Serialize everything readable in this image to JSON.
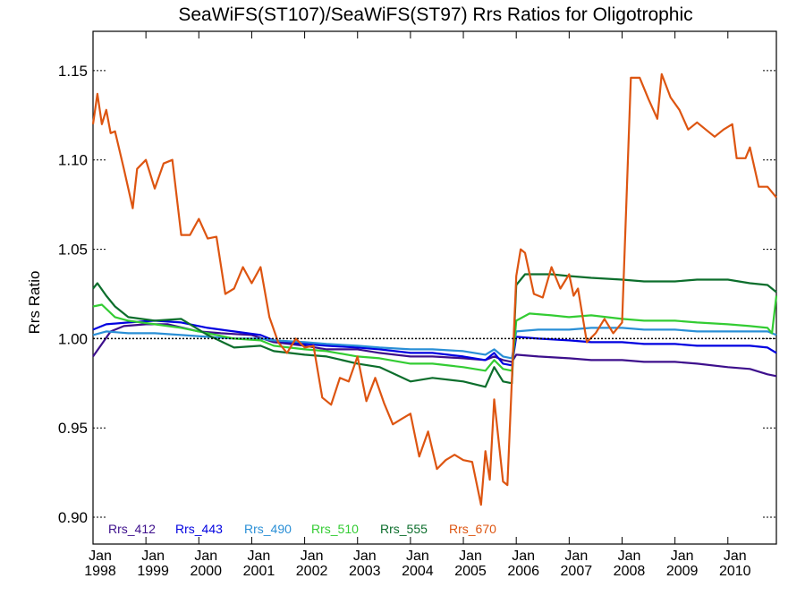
{
  "chart_data": {
    "type": "line",
    "title": "SeaWiFS(ST107)/SeaWiFS(ST97)  Rrs Ratios for Oligotrophic",
    "ylabel": "Rrs Ratio",
    "xlabel": "",
    "xlim": [
      "1998-01",
      "2010-12"
    ],
    "ylim": [
      0.885,
      1.172
    ],
    "x_ticks": [
      {
        "month": "Jan",
        "year": "1998",
        "date": "1998-01"
      },
      {
        "month": "Jan",
        "year": "1999",
        "date": "1999-01"
      },
      {
        "month": "Jan",
        "year": "2000",
        "date": "2000-01"
      },
      {
        "month": "Jan",
        "year": "2001",
        "date": "2001-01"
      },
      {
        "month": "Jan",
        "year": "2002",
        "date": "2002-01"
      },
      {
        "month": "Jan",
        "year": "2003",
        "date": "2003-01"
      },
      {
        "month": "Jan",
        "year": "2004",
        "date": "2004-01"
      },
      {
        "month": "Jan",
        "year": "2005",
        "date": "2005-01"
      },
      {
        "month": "Jan",
        "year": "2006",
        "date": "2006-01"
      },
      {
        "month": "Jan",
        "year": "2007",
        "date": "2007-01"
      },
      {
        "month": "Jan",
        "year": "2008",
        "date": "2008-01"
      },
      {
        "month": "Jan",
        "year": "2009",
        "date": "2009-01"
      },
      {
        "month": "Jan",
        "year": "2010",
        "date": "2010-01"
      }
    ],
    "y_ticks": [
      "0.90",
      "0.95",
      "1.00",
      "1.05",
      "1.10",
      "1.15"
    ],
    "reference_line": 1.0,
    "legend_position": "bottom-left",
    "series": [
      {
        "name": "Rrs_412",
        "color": "#3d0f8c",
        "points": [
          [
            "1998-01",
            0.99
          ],
          [
            "1998-03",
            0.997
          ],
          [
            "1998-05",
            1.004
          ],
          [
            "1998-08",
            1.007
          ],
          [
            "1999-01",
            1.008
          ],
          [
            "1999-06",
            1.008
          ],
          [
            "2000-01",
            1.004
          ],
          [
            "2000-06",
            1.003
          ],
          [
            "2001-01",
            1.002
          ],
          [
            "2001-06",
            0.998
          ],
          [
            "2002-01",
            0.996
          ],
          [
            "2002-06",
            0.994
          ],
          [
            "2003-01",
            0.994
          ],
          [
            "2003-06",
            0.992
          ],
          [
            "2004-01",
            0.99
          ],
          [
            "2004-06",
            0.99
          ],
          [
            "2005-01",
            0.989
          ],
          [
            "2005-06",
            0.988
          ],
          [
            "2005-08",
            0.99
          ],
          [
            "2005-10",
            0.988
          ],
          [
            "2005-12",
            0.987
          ],
          [
            "2006-01",
            0.991
          ],
          [
            "2006-06",
            0.99
          ],
          [
            "2007-01",
            0.989
          ],
          [
            "2007-06",
            0.988
          ],
          [
            "2008-01",
            0.988
          ],
          [
            "2008-06",
            0.987
          ],
          [
            "2009-01",
            0.987
          ],
          [
            "2009-06",
            0.986
          ],
          [
            "2010-01",
            0.984
          ],
          [
            "2010-06",
            0.983
          ],
          [
            "2010-10",
            0.98
          ],
          [
            "2010-12",
            0.979
          ]
        ]
      },
      {
        "name": "Rrs_443",
        "color": "#0000e0",
        "points": [
          [
            "1998-01",
            1.005
          ],
          [
            "1998-04",
            1.008
          ],
          [
            "1998-09",
            1.009
          ],
          [
            "1999-03",
            1.01
          ],
          [
            "1999-09",
            1.009
          ],
          [
            "2000-03",
            1.006
          ],
          [
            "2000-09",
            1.004
          ],
          [
            "2001-03",
            1.002
          ],
          [
            "2001-06",
            0.999
          ],
          [
            "2002-01",
            0.997
          ],
          [
            "2002-06",
            0.996
          ],
          [
            "2003-01",
            0.995
          ],
          [
            "2003-06",
            0.994
          ],
          [
            "2004-01",
            0.992
          ],
          [
            "2004-06",
            0.992
          ],
          [
            "2005-01",
            0.99
          ],
          [
            "2005-06",
            0.988
          ],
          [
            "2005-08",
            0.992
          ],
          [
            "2005-10",
            0.986
          ],
          [
            "2005-12",
            0.985
          ],
          [
            "2006-01",
            1.001
          ],
          [
            "2006-06",
            1.0
          ],
          [
            "2007-01",
            0.999
          ],
          [
            "2007-06",
            0.998
          ],
          [
            "2008-01",
            0.998
          ],
          [
            "2008-06",
            0.997
          ],
          [
            "2009-01",
            0.997
          ],
          [
            "2009-06",
            0.996
          ],
          [
            "2010-01",
            0.996
          ],
          [
            "2010-06",
            0.996
          ],
          [
            "2010-10",
            0.995
          ],
          [
            "2010-12",
            0.992
          ]
        ]
      },
      {
        "name": "Rrs_490",
        "color": "#2a8fd6",
        "points": [
          [
            "1998-01",
            1.002
          ],
          [
            "1998-04",
            1.004
          ],
          [
            "1998-09",
            1.003
          ],
          [
            "1999-03",
            1.003
          ],
          [
            "1999-09",
            1.002
          ],
          [
            "2000-03",
            1.001
          ],
          [
            "2000-09",
            1.0
          ],
          [
            "2001-03",
            1.0
          ],
          [
            "2001-06",
            0.999
          ],
          [
            "2002-01",
            0.998
          ],
          [
            "2002-06",
            0.997
          ],
          [
            "2003-01",
            0.996
          ],
          [
            "2003-06",
            0.995
          ],
          [
            "2004-01",
            0.994
          ],
          [
            "2004-06",
            0.994
          ],
          [
            "2005-01",
            0.993
          ],
          [
            "2005-06",
            0.991
          ],
          [
            "2005-08",
            0.994
          ],
          [
            "2005-10",
            0.99
          ],
          [
            "2005-12",
            0.989
          ],
          [
            "2006-01",
            1.004
          ],
          [
            "2006-06",
            1.005
          ],
          [
            "2007-01",
            1.005
          ],
          [
            "2007-06",
            1.006
          ],
          [
            "2008-01",
            1.006
          ],
          [
            "2008-06",
            1.005
          ],
          [
            "2009-01",
            1.005
          ],
          [
            "2009-06",
            1.004
          ],
          [
            "2010-01",
            1.004
          ],
          [
            "2010-06",
            1.004
          ],
          [
            "2010-10",
            1.004
          ],
          [
            "2010-12",
            1.002
          ]
        ]
      },
      {
        "name": "Rrs_510",
        "color": "#33cc33",
        "points": [
          [
            "1998-01",
            1.018
          ],
          [
            "1998-03",
            1.019
          ],
          [
            "1998-06",
            1.012
          ],
          [
            "1998-09",
            1.01
          ],
          [
            "1999-03",
            1.008
          ],
          [
            "1999-09",
            1.006
          ],
          [
            "2000-03",
            1.003
          ],
          [
            "2000-09",
            1.0
          ],
          [
            "2001-03",
            0.999
          ],
          [
            "2001-06",
            0.996
          ],
          [
            "2002-01",
            0.994
          ],
          [
            "2002-06",
            0.993
          ],
          [
            "2003-01",
            0.99
          ],
          [
            "2003-06",
            0.989
          ],
          [
            "2004-01",
            0.986
          ],
          [
            "2004-06",
            0.986
          ],
          [
            "2005-01",
            0.984
          ],
          [
            "2005-06",
            0.982
          ],
          [
            "2005-08",
            0.988
          ],
          [
            "2005-10",
            0.983
          ],
          [
            "2005-12",
            0.982
          ],
          [
            "2006-01",
            1.01
          ],
          [
            "2006-04",
            1.014
          ],
          [
            "2006-09",
            1.013
          ],
          [
            "2007-01",
            1.012
          ],
          [
            "2007-06",
            1.013
          ],
          [
            "2008-01",
            1.011
          ],
          [
            "2008-06",
            1.01
          ],
          [
            "2009-01",
            1.01
          ],
          [
            "2009-06",
            1.009
          ],
          [
            "2010-01",
            1.008
          ],
          [
            "2010-06",
            1.007
          ],
          [
            "2010-10",
            1.006
          ],
          [
            "2010-11",
            1.003
          ],
          [
            "2010-12",
            1.024
          ]
        ]
      },
      {
        "name": "Rrs_555",
        "color": "#0c6e2c",
        "points": [
          [
            "1998-01",
            1.028
          ],
          [
            "1998-02",
            1.031
          ],
          [
            "1998-04",
            1.024
          ],
          [
            "1998-06",
            1.018
          ],
          [
            "1998-09",
            1.012
          ],
          [
            "1999-03",
            1.01
          ],
          [
            "1999-09",
            1.011
          ],
          [
            "2000-03",
            1.002
          ],
          [
            "2000-09",
            0.995
          ],
          [
            "2001-03",
            0.996
          ],
          [
            "2001-06",
            0.993
          ],
          [
            "2002-01",
            0.991
          ],
          [
            "2002-06",
            0.99
          ],
          [
            "2003-01",
            0.986
          ],
          [
            "2003-06",
            0.984
          ],
          [
            "2004-01",
            0.976
          ],
          [
            "2004-06",
            0.978
          ],
          [
            "2005-01",
            0.976
          ],
          [
            "2005-06",
            0.973
          ],
          [
            "2005-08",
            0.984
          ],
          [
            "2005-10",
            0.976
          ],
          [
            "2005-12",
            0.975
          ],
          [
            "2006-01",
            1.03
          ],
          [
            "2006-03",
            1.036
          ],
          [
            "2006-09",
            1.036
          ],
          [
            "2007-01",
            1.035
          ],
          [
            "2007-06",
            1.034
          ],
          [
            "2008-01",
            1.033
          ],
          [
            "2008-06",
            1.032
          ],
          [
            "2009-01",
            1.032
          ],
          [
            "2009-06",
            1.033
          ],
          [
            "2010-01",
            1.033
          ],
          [
            "2010-06",
            1.031
          ],
          [
            "2010-10",
            1.03
          ],
          [
            "2010-12",
            1.026
          ]
        ]
      },
      {
        "name": "Rrs_670",
        "color": "#dd5511",
        "points": [
          [
            "1998-01",
            1.12
          ],
          [
            "1998-02",
            1.137
          ],
          [
            "1998-03",
            1.12
          ],
          [
            "1998-04",
            1.128
          ],
          [
            "1998-05",
            1.115
          ],
          [
            "1998-06",
            1.116
          ],
          [
            "1998-08",
            1.095
          ],
          [
            "1998-10",
            1.073
          ],
          [
            "1998-11",
            1.095
          ],
          [
            "1999-01",
            1.1
          ],
          [
            "1999-03",
            1.084
          ],
          [
            "1999-05",
            1.098
          ],
          [
            "1999-07",
            1.1
          ],
          [
            "1999-09",
            1.058
          ],
          [
            "1999-11",
            1.058
          ],
          [
            "2000-01",
            1.067
          ],
          [
            "2000-03",
            1.056
          ],
          [
            "2000-05",
            1.057
          ],
          [
            "2000-07",
            1.025
          ],
          [
            "2000-09",
            1.028
          ],
          [
            "2000-11",
            1.04
          ],
          [
            "2001-01",
            1.031
          ],
          [
            "2001-03",
            1.04
          ],
          [
            "2001-05",
            1.012
          ],
          [
            "2001-07",
            0.998
          ],
          [
            "2001-09",
            0.992
          ],
          [
            "2001-11",
            1.0
          ],
          [
            "2002-01",
            0.995
          ],
          [
            "2002-03",
            0.996
          ],
          [
            "2002-05",
            0.967
          ],
          [
            "2002-07",
            0.963
          ],
          [
            "2002-09",
            0.978
          ],
          [
            "2002-11",
            0.976
          ],
          [
            "2003-01",
            0.99
          ],
          [
            "2003-03",
            0.965
          ],
          [
            "2003-05",
            0.978
          ],
          [
            "2003-07",
            0.964
          ],
          [
            "2003-09",
            0.952
          ],
          [
            "2003-11",
            0.955
          ],
          [
            "2004-01",
            0.958
          ],
          [
            "2004-03",
            0.934
          ],
          [
            "2004-05",
            0.948
          ],
          [
            "2004-07",
            0.927
          ],
          [
            "2004-09",
            0.932
          ],
          [
            "2004-11",
            0.935
          ],
          [
            "2005-01",
            0.932
          ],
          [
            "2005-03",
            0.931
          ],
          [
            "2005-05",
            0.907
          ],
          [
            "2005-06",
            0.937
          ],
          [
            "2005-07",
            0.921
          ],
          [
            "2005-08",
            0.966
          ],
          [
            "2005-10",
            0.92
          ],
          [
            "2005-11",
            0.918
          ],
          [
            "2006-01",
            1.035
          ],
          [
            "2006-02",
            1.05
          ],
          [
            "2006-03",
            1.048
          ],
          [
            "2006-05",
            1.025
          ],
          [
            "2006-07",
            1.023
          ],
          [
            "2006-09",
            1.04
          ],
          [
            "2006-11",
            1.028
          ],
          [
            "2007-01",
            1.036
          ],
          [
            "2007-02",
            1.024
          ],
          [
            "2007-03",
            1.028
          ],
          [
            "2007-05",
            0.998
          ],
          [
            "2007-07",
            1.003
          ],
          [
            "2007-09",
            1.011
          ],
          [
            "2007-11",
            1.003
          ],
          [
            "2008-01",
            1.009
          ],
          [
            "2008-03",
            1.146
          ],
          [
            "2008-05",
            1.146
          ],
          [
            "2008-07",
            1.134
          ],
          [
            "2008-09",
            1.123
          ],
          [
            "2008-10",
            1.148
          ],
          [
            "2008-12",
            1.135
          ],
          [
            "2009-02",
            1.128
          ],
          [
            "2009-04",
            1.117
          ],
          [
            "2009-06",
            1.121
          ],
          [
            "2009-08",
            1.117
          ],
          [
            "2009-10",
            1.113
          ],
          [
            "2009-12",
            1.117
          ],
          [
            "2010-02",
            1.12
          ],
          [
            "2010-03",
            1.101
          ],
          [
            "2010-05",
            1.101
          ],
          [
            "2010-06",
            1.107
          ],
          [
            "2010-08",
            1.085
          ],
          [
            "2010-10",
            1.085
          ],
          [
            "2010-12",
            1.079
          ]
        ]
      }
    ]
  }
}
